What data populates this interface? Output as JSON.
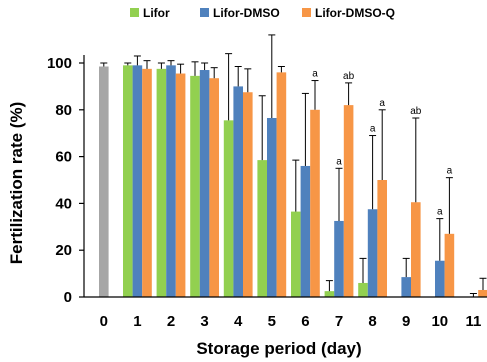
{
  "chart_data": {
    "type": "bar",
    "title": "",
    "xlabel": "Storage period (day)",
    "ylabel": "Fertilization rate (%)",
    "ylim": [
      0,
      100
    ],
    "yticks": [
      0,
      20,
      40,
      60,
      80,
      100
    ],
    "categories": [
      "0",
      "1",
      "2",
      "3",
      "4",
      "5",
      "6",
      "7",
      "8",
      "9",
      "10",
      "11"
    ],
    "legend_position": "top",
    "control": {
      "category": "0",
      "value": 98.5,
      "error": 1.5,
      "color": "#a6a6a6"
    },
    "series": [
      {
        "name": "Lifor",
        "color": "#92d050",
        "values": [
          null,
          99,
          97.5,
          94.5,
          75.5,
          58.5,
          36.5,
          2.5,
          6,
          0,
          0,
          0
        ],
        "errors": [
          null,
          1,
          2.5,
          6,
          28.5,
          27.5,
          22,
          4.5,
          10.5,
          0,
          0,
          0
        ],
        "annotations": [
          null,
          null,
          null,
          null,
          null,
          null,
          null,
          null,
          null,
          null,
          null,
          null
        ]
      },
      {
        "name": "Lifor-DMSO",
        "color": "#4f81bd",
        "values": [
          null,
          99,
          99,
          97,
          90,
          76.5,
          56,
          32.5,
          37.5,
          8.5,
          15.5,
          0
        ],
        "errors": [
          null,
          4,
          2,
          3,
          8.5,
          35.5,
          31,
          22.5,
          31.5,
          8,
          18,
          1.5
        ],
        "annotations": [
          null,
          null,
          null,
          null,
          null,
          null,
          null,
          "a",
          "a",
          null,
          "a",
          null
        ]
      },
      {
        "name": "Lifor-DMSO-Q",
        "color": "#f79646",
        "values": [
          null,
          97.5,
          95.5,
          93.5,
          87.5,
          96,
          80,
          82,
          50,
          40.5,
          27,
          3
        ],
        "errors": [
          null,
          3.5,
          4,
          4.5,
          10,
          2.5,
          12.5,
          9.5,
          30,
          36,
          24,
          5
        ],
        "annotations": [
          null,
          null,
          null,
          null,
          null,
          null,
          "a",
          "ab",
          "a",
          "ab",
          "a",
          null
        ]
      }
    ]
  }
}
